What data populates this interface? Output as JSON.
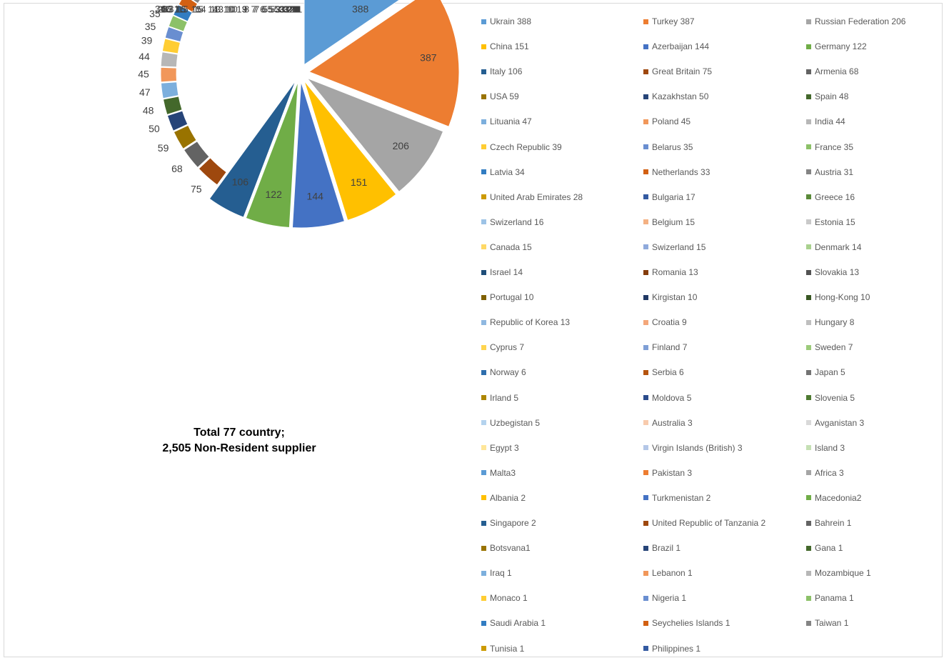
{
  "caption": {
    "line1": "Total 77 country;",
    "line2": "2,505 Non-Resident supplier"
  },
  "chart_data": {
    "type": "pie",
    "legend_position": "right",
    "slices": [
      {
        "label": "Ukrain 388",
        "value": 388,
        "color": "#5B9BD5"
      },
      {
        "label": "Turkey 387",
        "value": 387,
        "color": "#ED7D31"
      },
      {
        "label": "Russian Federation 206",
        "value": 206,
        "color": "#A5A5A5"
      },
      {
        "label": "China 151",
        "value": 151,
        "color": "#FFC000"
      },
      {
        "label": "Azerbaijan 144",
        "value": 144,
        "color": "#4472C4"
      },
      {
        "label": "Germany 122",
        "value": 122,
        "color": "#70AD47"
      },
      {
        "label": "Italy 106",
        "value": 106,
        "color": "#255E91"
      },
      {
        "label": "Great Britain 75",
        "value": 75,
        "color": "#9E480E"
      },
      {
        "label": "Armenia 68",
        "value": 68,
        "color": "#636363"
      },
      {
        "label": "USA 59",
        "value": 59,
        "color": "#997300"
      },
      {
        "label": "Kazakhstan 50",
        "value": 50,
        "color": "#264478"
      },
      {
        "label": "Spain 48",
        "value": 48,
        "color": "#43682B"
      },
      {
        "label": "Lituania  47",
        "value": 47,
        "color": "#7CAFDD"
      },
      {
        "label": "Poland  45",
        "value": 45,
        "color": "#F1975A"
      },
      {
        "label": "India 44",
        "value": 44,
        "color": "#B7B7B7"
      },
      {
        "label": "Czech Republic 39",
        "value": 39,
        "color": "#FFCD33"
      },
      {
        "label": "Belarus  35",
        "value": 35,
        "color": "#698ED0"
      },
      {
        "label": "France 35",
        "value": 35,
        "color": "#8CC168"
      },
      {
        "label": "Latvia  34",
        "value": 34,
        "color": "#327DC2"
      },
      {
        "label": "Netherlands 33",
        "value": 33,
        "color": "#D26012"
      },
      {
        "label": "Austria 31",
        "value": 31,
        "color": "#848484"
      },
      {
        "label": "United Arab Emirates 28",
        "value": 28,
        "color": "#CC9A00"
      },
      {
        "label": "Bulgaria 17",
        "value": 17,
        "color": "#335AA1"
      },
      {
        "label": "Greece 16",
        "value": 16,
        "color": "#5A8A39"
      },
      {
        "label": "Swizerland 16",
        "value": 16,
        "color": "#9DC3E6"
      },
      {
        "label": "Belgium 15",
        "value": 15,
        "color": "#F4B183"
      },
      {
        "label": "Estonia 15",
        "value": 15,
        "color": "#C9C9C9"
      },
      {
        "label": "Canada 15",
        "value": 15,
        "color": "#FFD966"
      },
      {
        "label": "Swizerland 15",
        "value": 15,
        "color": "#8FAADC"
      },
      {
        "label": "Denmark 14",
        "value": 14,
        "color": "#A9D18E"
      },
      {
        "label": "Israel 14",
        "value": 14,
        "color": "#1F4E79"
      },
      {
        "label": "Romania 13",
        "value": 13,
        "color": "#843C0C"
      },
      {
        "label": "Slovakia 13",
        "value": 13,
        "color": "#525252"
      },
      {
        "label": "Portugal 10",
        "value": 10,
        "color": "#7F6000"
      },
      {
        "label": "Kirgistan  10",
        "value": 10,
        "color": "#203864"
      },
      {
        "label": "Hong-Kong  10",
        "value": 10,
        "color": "#385723"
      },
      {
        "label": "Republic of Korea  13",
        "value": 13,
        "color": "#8FB8E0"
      },
      {
        "label": "Croatia 9",
        "value": 9,
        "color": "#F4A77A"
      },
      {
        "label": "Hungary  8",
        "value": 8,
        "color": "#BFBFBF"
      },
      {
        "label": "Cyprus 7",
        "value": 7,
        "color": "#FFD54F"
      },
      {
        "label": "Finland 7",
        "value": 7,
        "color": "#7F9FD6"
      },
      {
        "label": "Sweden 7",
        "value": 7,
        "color": "#9CCB7A"
      },
      {
        "label": "Norway 6",
        "value": 6,
        "color": "#2E6EAD"
      },
      {
        "label": "Serbia 6",
        "value": 6,
        "color": "#B5540F"
      },
      {
        "label": "Japan 5",
        "value": 5,
        "color": "#737373"
      },
      {
        "label": "Irland 5",
        "value": 5,
        "color": "#AD8600"
      },
      {
        "label": "Moldova  5",
        "value": 5,
        "color": "#2B4C8C"
      },
      {
        "label": "Slovenia 5",
        "value": 5,
        "color": "#4E7A31"
      },
      {
        "label": "Uzbegistan 5",
        "value": 5,
        "color": "#B4D3EE"
      },
      {
        "label": "Australia 3",
        "value": 3,
        "color": "#F8CBAD"
      },
      {
        "label": "Avganistan 3",
        "value": 3,
        "color": "#D9D9D9"
      },
      {
        "label": "Egypt 3",
        "value": 3,
        "color": "#FFE699"
      },
      {
        "label": "Virgin Islands (British)  3",
        "value": 3,
        "color": "#B4C7E7"
      },
      {
        "label": "Island 3",
        "value": 3,
        "color": "#C5E0B4"
      },
      {
        "label": "Malta3",
        "value": 3,
        "color": "#5B9BD5"
      },
      {
        "label": "Pakistan  3",
        "value": 3,
        "color": "#ED7D31"
      },
      {
        "label": "Africa 3",
        "value": 3,
        "color": "#A5A5A5"
      },
      {
        "label": "Albania 2",
        "value": 2,
        "color": "#FFC000"
      },
      {
        "label": "Turkmenistan  2",
        "value": 2,
        "color": "#4472C4"
      },
      {
        "label": "Macedonia2",
        "value": 2,
        "color": "#70AD47"
      },
      {
        "label": "Singapore 2",
        "value": 2,
        "color": "#255E91"
      },
      {
        "label": "United Republic of Tanzania 2",
        "value": 2,
        "color": "#9E480E"
      },
      {
        "label": "Bahrein 1",
        "value": 1,
        "color": "#636363"
      },
      {
        "label": "Botsvana1",
        "value": 1,
        "color": "#997300"
      },
      {
        "label": "Brazil 1",
        "value": 1,
        "color": "#264478"
      },
      {
        "label": "Gana 1",
        "value": 1,
        "color": "#43682B"
      },
      {
        "label": "Iraq 1",
        "value": 1,
        "color": "#7CAFDD"
      },
      {
        "label": "Lebanon 1",
        "value": 1,
        "color": "#F1975A"
      },
      {
        "label": "Mozambique 1",
        "value": 1,
        "color": "#B7B7B7"
      },
      {
        "label": "Monaco 1",
        "value": 1,
        "color": "#FFCD33"
      },
      {
        "label": "Nigeria 1",
        "value": 1,
        "color": "#698ED0"
      },
      {
        "label": "Panama 1",
        "value": 1,
        "color": "#8CC168"
      },
      {
        "label": "Saudi Arabia 1",
        "value": 1,
        "color": "#327DC2"
      },
      {
        "label": "Seychelies Islands 1",
        "value": 1,
        "color": "#D26012"
      },
      {
        "label": "Taiwan 1",
        "value": 1,
        "color": "#848484"
      },
      {
        "label": "Tunisia 1",
        "value": 1,
        "color": "#CC9A00"
      },
      {
        "label": "Philippines 1",
        "value": 1,
        "color": "#335AA1"
      }
    ]
  }
}
